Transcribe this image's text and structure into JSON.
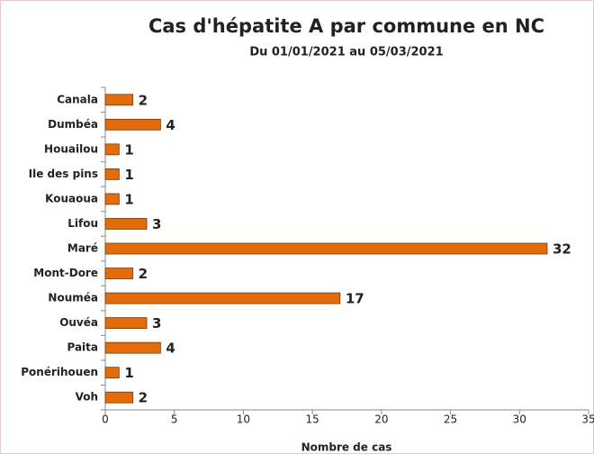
{
  "chart_data": {
    "type": "bar",
    "orientation": "horizontal",
    "title": "Cas d'hépatite A par commune en NC",
    "subtitle": "Du 01/01/2021 au 05/03/2021",
    "x_label": "Nombre de cas",
    "categories": [
      "Canala",
      "Dumbéa",
      "Houailou",
      "Ile des pins",
      "Kouaoua",
      "Lifou",
      "Maré",
      "Mont-Dore",
      "Nouméa",
      "Ouvéa",
      "Paita",
      "Ponérihouen",
      "Voh"
    ],
    "values": [
      2,
      4,
      1,
      1,
      1,
      3,
      32,
      2,
      17,
      3,
      4,
      1,
      2
    ],
    "color": "#e36c0a",
    "xlim": [
      0,
      35
    ],
    "xticks": [
      0,
      5,
      10,
      15,
      20,
      25,
      30,
      35
    ],
    "grid": false
  }
}
